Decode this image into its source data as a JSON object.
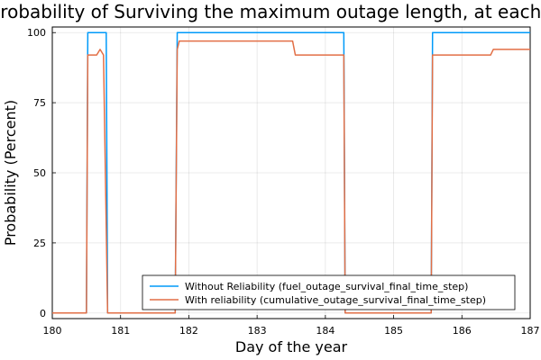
{
  "chart_data": {
    "type": "line",
    "title": "Probability of Surviving the maximum outage length, at each time step",
    "xlabel": "Day of the year",
    "ylabel": "Probability (Percent)",
    "xlim": [
      180,
      187
    ],
    "ylim": [
      -2,
      102
    ],
    "x_ticks": [
      180,
      181,
      182,
      183,
      184,
      185,
      186,
      187
    ],
    "y_ticks": [
      0,
      25,
      50,
      75,
      100
    ],
    "grid": true,
    "legend_position": "bottom-right",
    "series": [
      {
        "name": "Without Reliability (fuel_outage_survival_final_time_step)",
        "color": "#009af9",
        "x": [
          180,
          180.5,
          180.52,
          180.79,
          180.81,
          181.8,
          181.83,
          184.27,
          184.29,
          185.55,
          185.57,
          187
        ],
        "y": [
          0,
          0,
          100,
          100,
          0,
          0,
          100,
          100,
          0,
          0,
          100,
          100
        ]
      },
      {
        "name": "With reliability (cumulative_outage_survival_final_time_step)",
        "color": "#e26f46",
        "x": [
          180,
          180.5,
          180.52,
          180.65,
          180.7,
          180.75,
          180.81,
          181.8,
          181.83,
          181.86,
          183.52,
          183.56,
          184.27,
          184.29,
          185.55,
          185.57,
          186.42,
          186.46,
          187
        ],
        "y": [
          0,
          0,
          92,
          92,
          94,
          92,
          0,
          0,
          94,
          97,
          97,
          92,
          92,
          0,
          0,
          92,
          92,
          94,
          94
        ]
      }
    ]
  }
}
